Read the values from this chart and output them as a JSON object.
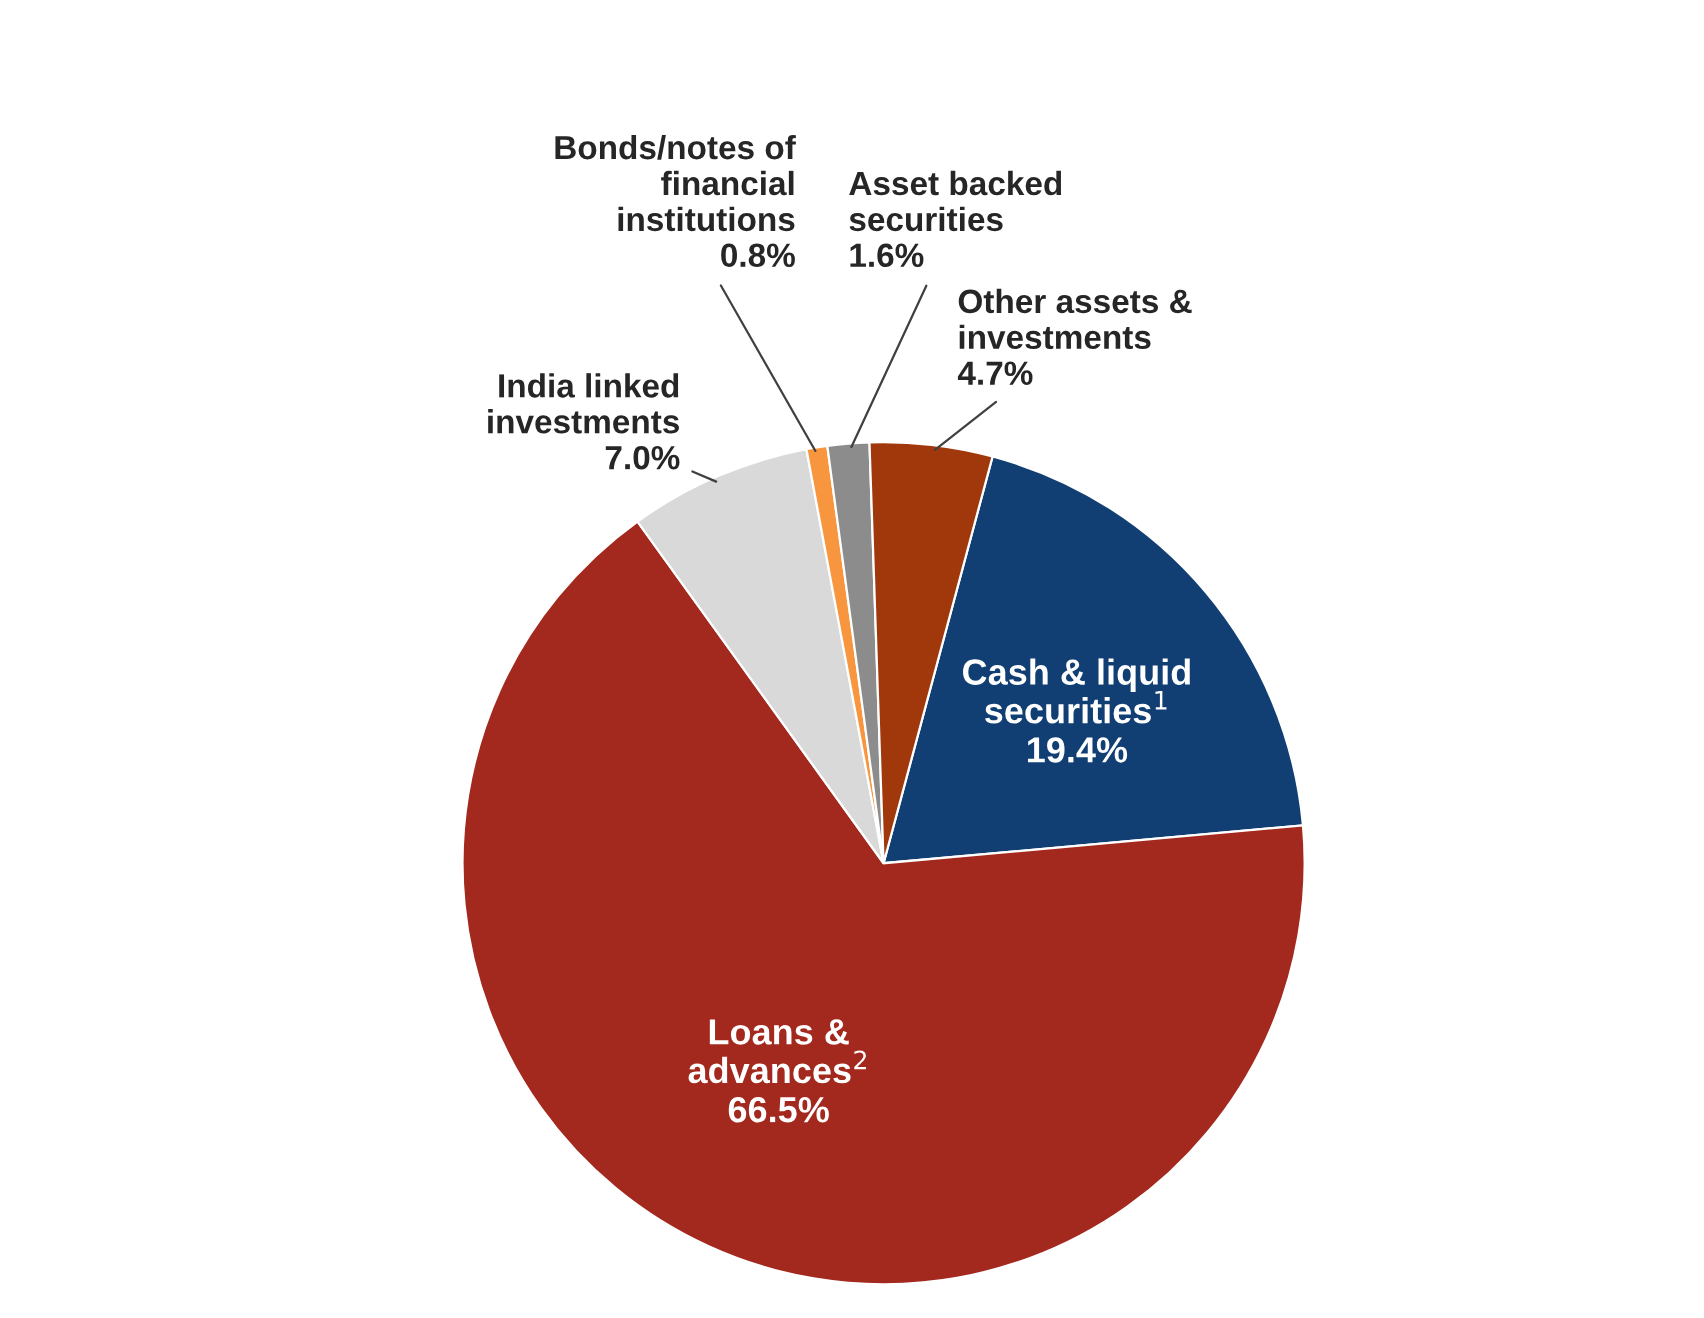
{
  "chart_data": {
    "type": "pie",
    "categories": [
      "Cash & liquid\nsecurities$^{1}$",
      "Loans &\nadvances$^{2}$",
      "India linked\ninvestments",
      "Bonds/notes of\nfinancial\ninstitutions",
      "Asset backed\nsecurities",
      "Other assets &\ninvestments"
    ],
    "values": [
      19.4,
      66.5,
      7.0,
      0.8,
      1.6,
      4.7
    ],
    "value_labels": [
      "19.4%",
      "66.5%",
      "7.0%",
      "0.8%",
      "1.6%",
      "4.7%"
    ],
    "colors": [
      "#123f73",
      "#a3281e",
      "#d9d9d9",
      "#f7963f",
      "#8c8c8c",
      "#a1380c"
    ]
  }
}
